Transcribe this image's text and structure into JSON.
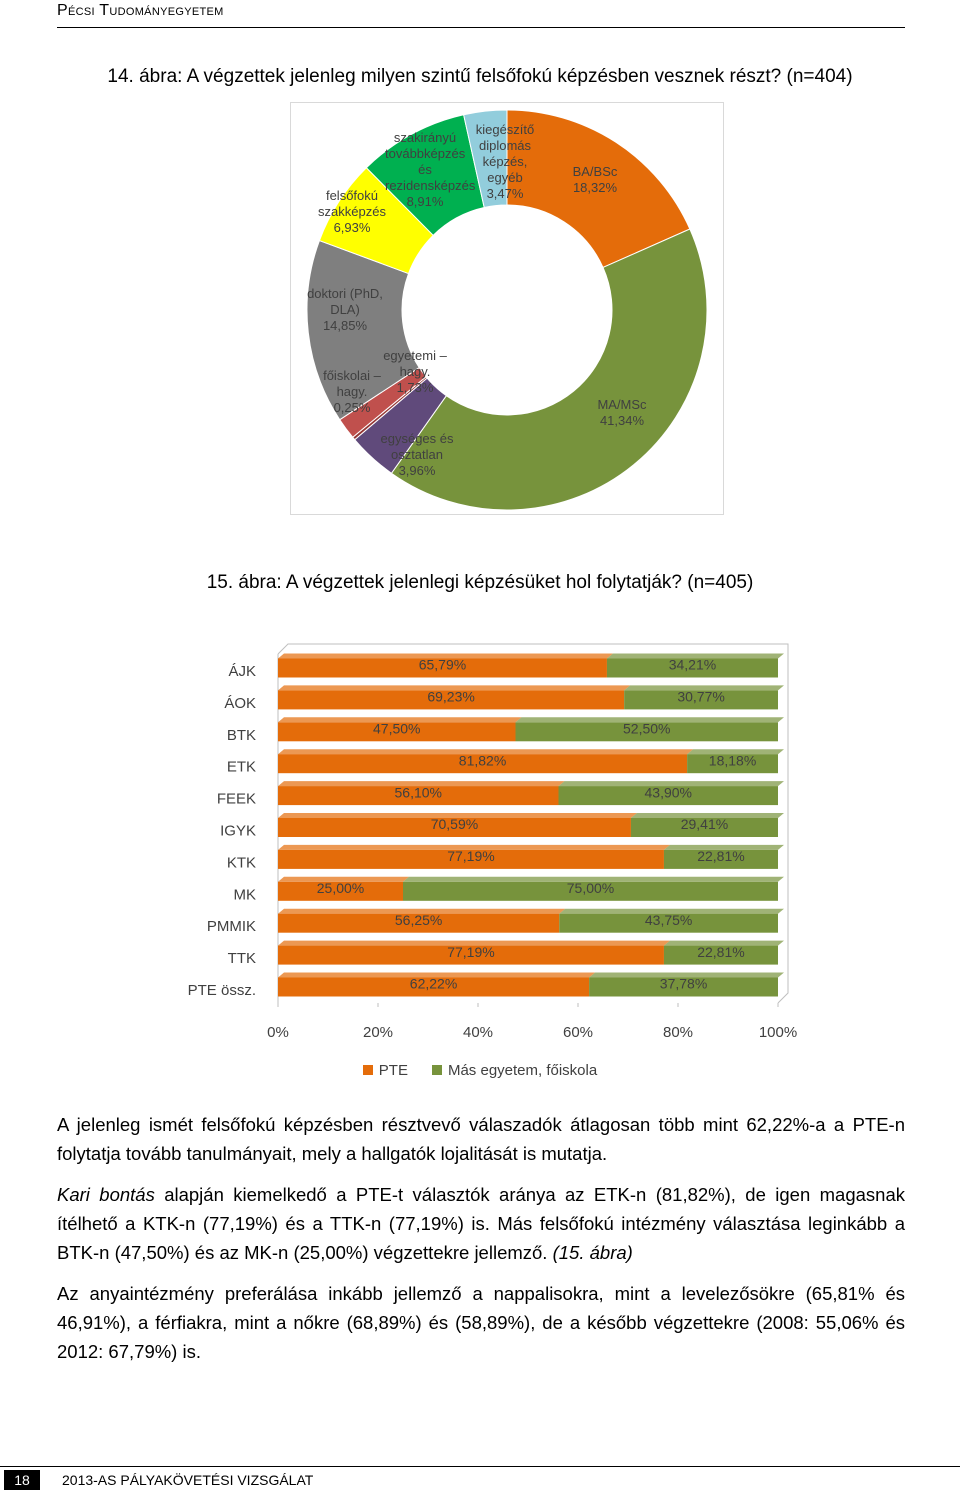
{
  "header": {
    "title": "Pécsi Tudományegyetem"
  },
  "chart_data": [
    {
      "type": "doughnut",
      "title": "14. ábra: A végzettek jelenleg milyen szintű felsőfokú képzésben vesznek részt? (n=404)",
      "categories": [
        "BA/BSc",
        "MA/MSc",
        "egységes és osztatlan",
        "főiskolai – hagy.",
        "egyetemi – hagy.",
        "doktori (PhD, DLA)",
        "felsőfokú szakképzés",
        "szakirányú továbbképzés és rezidensképzés",
        "kiegészítő diplomás képzés, egyéb"
      ],
      "values": [
        18.32,
        41.34,
        3.96,
        0.25,
        1.73,
        14.85,
        6.93,
        8.91,
        3.47
      ],
      "value_labels": [
        "18,32%",
        "41,34%",
        "3,96%",
        "0,25%",
        "1,73%",
        "14,85%",
        "6,93%",
        "8,91%",
        "3,47%"
      ],
      "colors": [
        "#e46c0a",
        "#77933c",
        "#604a7b",
        "#953735",
        "#c0504d",
        "#7f7f7f",
        "#ffff00",
        "#00b050",
        "#92cddc"
      ]
    },
    {
      "type": "stacked_bar_horizontal",
      "title": "15. ábra: A végzettek jelenlegi képzésüket hol folytatják? (n=405)",
      "categories": [
        "ÁJK",
        "ÁOK",
        "BTK",
        "ETK",
        "FEEK",
        "IGYK",
        "KTK",
        "MK",
        "PMMIK",
        "TTK",
        "PTE össz."
      ],
      "series": [
        {
          "name": "PTE",
          "color": "#e46c0a",
          "values": [
            65.79,
            69.23,
            47.5,
            81.82,
            56.1,
            70.59,
            77.19,
            25.0,
            56.25,
            77.19,
            62.22
          ],
          "value_labels": [
            "65,79%",
            "69,23%",
            "47,50%",
            "81,82%",
            "56,10%",
            "70,59%",
            "77,19%",
            "25,00%",
            "56,25%",
            "77,19%",
            "62,22%"
          ]
        },
        {
          "name": "Más egyetem, főiskola",
          "color": "#77933c",
          "values": [
            34.21,
            30.77,
            52.5,
            18.18,
            43.9,
            29.41,
            22.81,
            75.0,
            43.75,
            22.81,
            37.78
          ],
          "value_labels": [
            "34,21%",
            "30,77%",
            "52,50%",
            "18,18%",
            "43,90%",
            "29,41%",
            "22,81%",
            "75,00%",
            "43,75%",
            "22,81%",
            "37,78%"
          ]
        }
      ],
      "xlim": [
        0,
        100
      ],
      "xticks": [
        {
          "value": 0,
          "label": "0%"
        },
        {
          "value": 20,
          "label": "20%"
        },
        {
          "value": 40,
          "label": "40%"
        },
        {
          "value": 60,
          "label": "60%"
        },
        {
          "value": 80,
          "label": "80%"
        },
        {
          "value": 100,
          "label": "100%"
        }
      ],
      "legend": "bottom"
    }
  ],
  "paragraphs": [
    [
      "A jelenleg ismét felsőfokú képzésben résztvevő válaszadók átlagosan több mint 62,22%-a a PTE-n folytatja tovább tanulmányait, mely a hallgatók lojalitását is mutatja."
    ],
    [
      "Kari bontás",
      " alapján kiemelkedő a PTE-t választók aránya az ETK-n (81,82%), de igen magasnak ítélhető a KTK-n (77,19%) és a TTK-n (77,19%) is. Más felsőfokú intézmény választása leginkább a BTK-n (47,50%) és az MK-n (25,00%) végzettekre jellemző. ",
      "(15. ábra)"
    ],
    [
      "Az anyaintézmény preferálása inkább jellemző a nappalisokra, mint a levelezősökre (65,81% és 46,91%), a férfiakra, mint a nőkre (68,89%) és (58,89%), de a később végzettekre (2008: 55,06% és 2012: 67,79%) is."
    ]
  ],
  "footer": {
    "page": "18",
    "title": "2013-AS PÁLYAKÖVETÉSI VIZSGÁLAT"
  }
}
